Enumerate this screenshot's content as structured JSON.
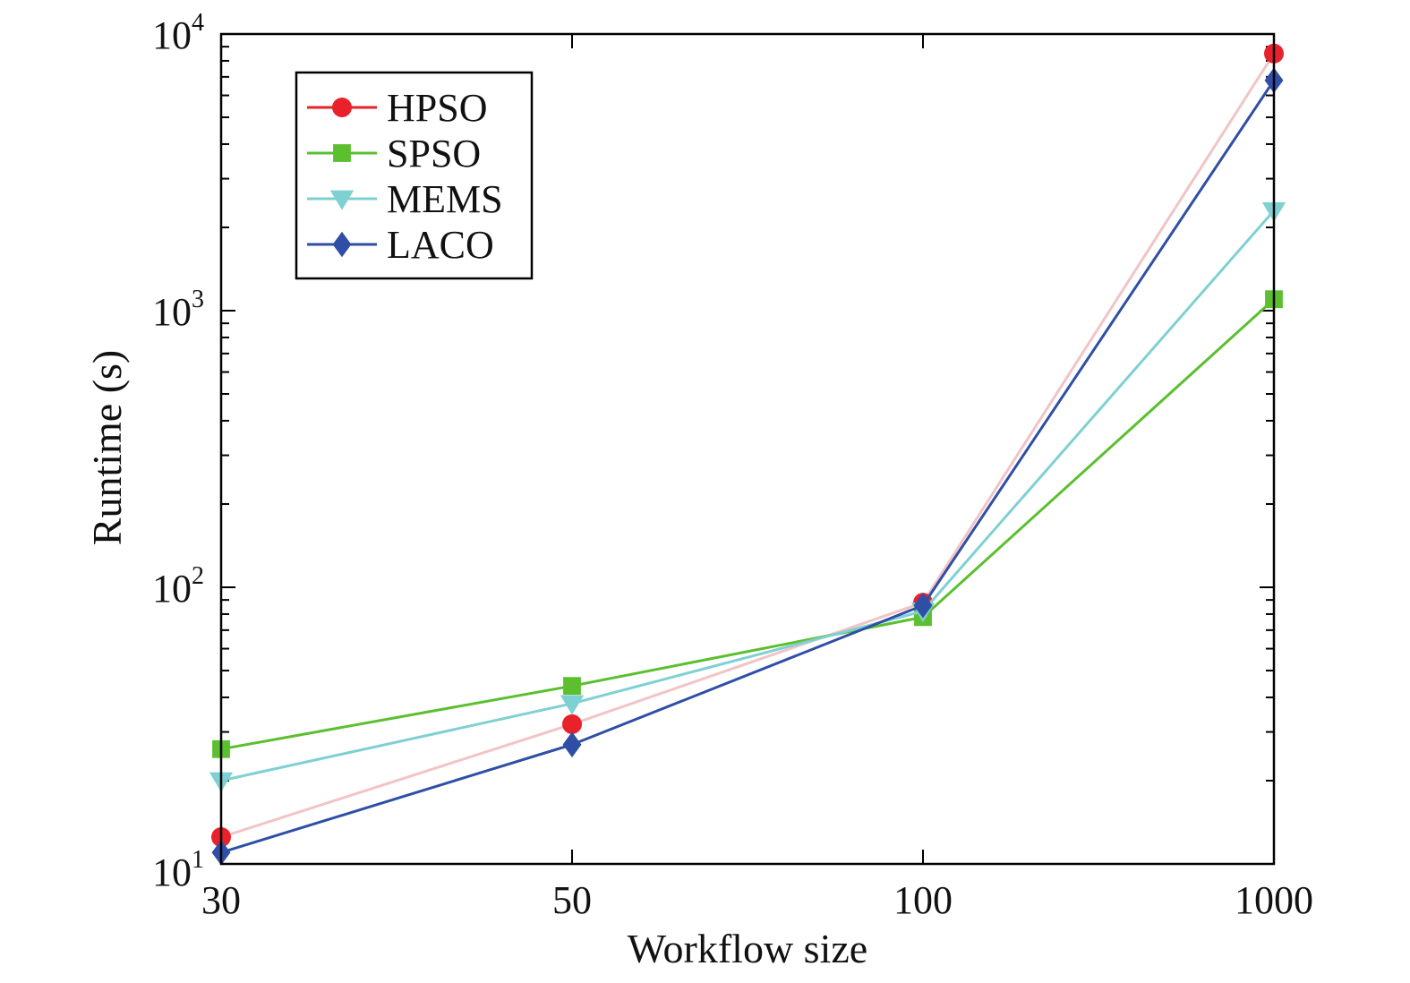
{
  "chart_data": {
    "type": "line",
    "title": "",
    "xlabel": "Workflow size",
    "ylabel": "Runtime (s)",
    "y_scale": "log",
    "ylim": [
      10,
      10000
    ],
    "grid": false,
    "legend_position": "top-left",
    "categories": [
      "30",
      "50",
      "100",
      "1000"
    ],
    "y_tick_labels": [
      {
        "base": "10",
        "exp": "1",
        "value": 10
      },
      {
        "base": "10",
        "exp": "2",
        "value": 100
      },
      {
        "base": "10",
        "exp": "3",
        "value": 1000
      },
      {
        "base": "10",
        "exp": "4",
        "value": 10000
      }
    ],
    "series": [
      {
        "name": "HPSO",
        "marker": "circle",
        "color": "#e8212b",
        "line_color": "#f2c4c6",
        "values": [
          12.5,
          32,
          88,
          8500
        ]
      },
      {
        "name": "SPSO",
        "marker": "square",
        "color": "#5bbf2f",
        "line_color": "#5bbf2f",
        "values": [
          26,
          44,
          78,
          1100
        ]
      },
      {
        "name": "MEMS",
        "marker": "triangle-down",
        "color": "#7fd0d3",
        "line_color": "#7fd0d3",
        "values": [
          20,
          38,
          82,
          2300
        ]
      },
      {
        "name": "LACO",
        "marker": "diamond",
        "color": "#2f4fa6",
        "line_color": "#2f4fa6",
        "values": [
          11,
          27,
          86,
          6800
        ]
      }
    ]
  }
}
